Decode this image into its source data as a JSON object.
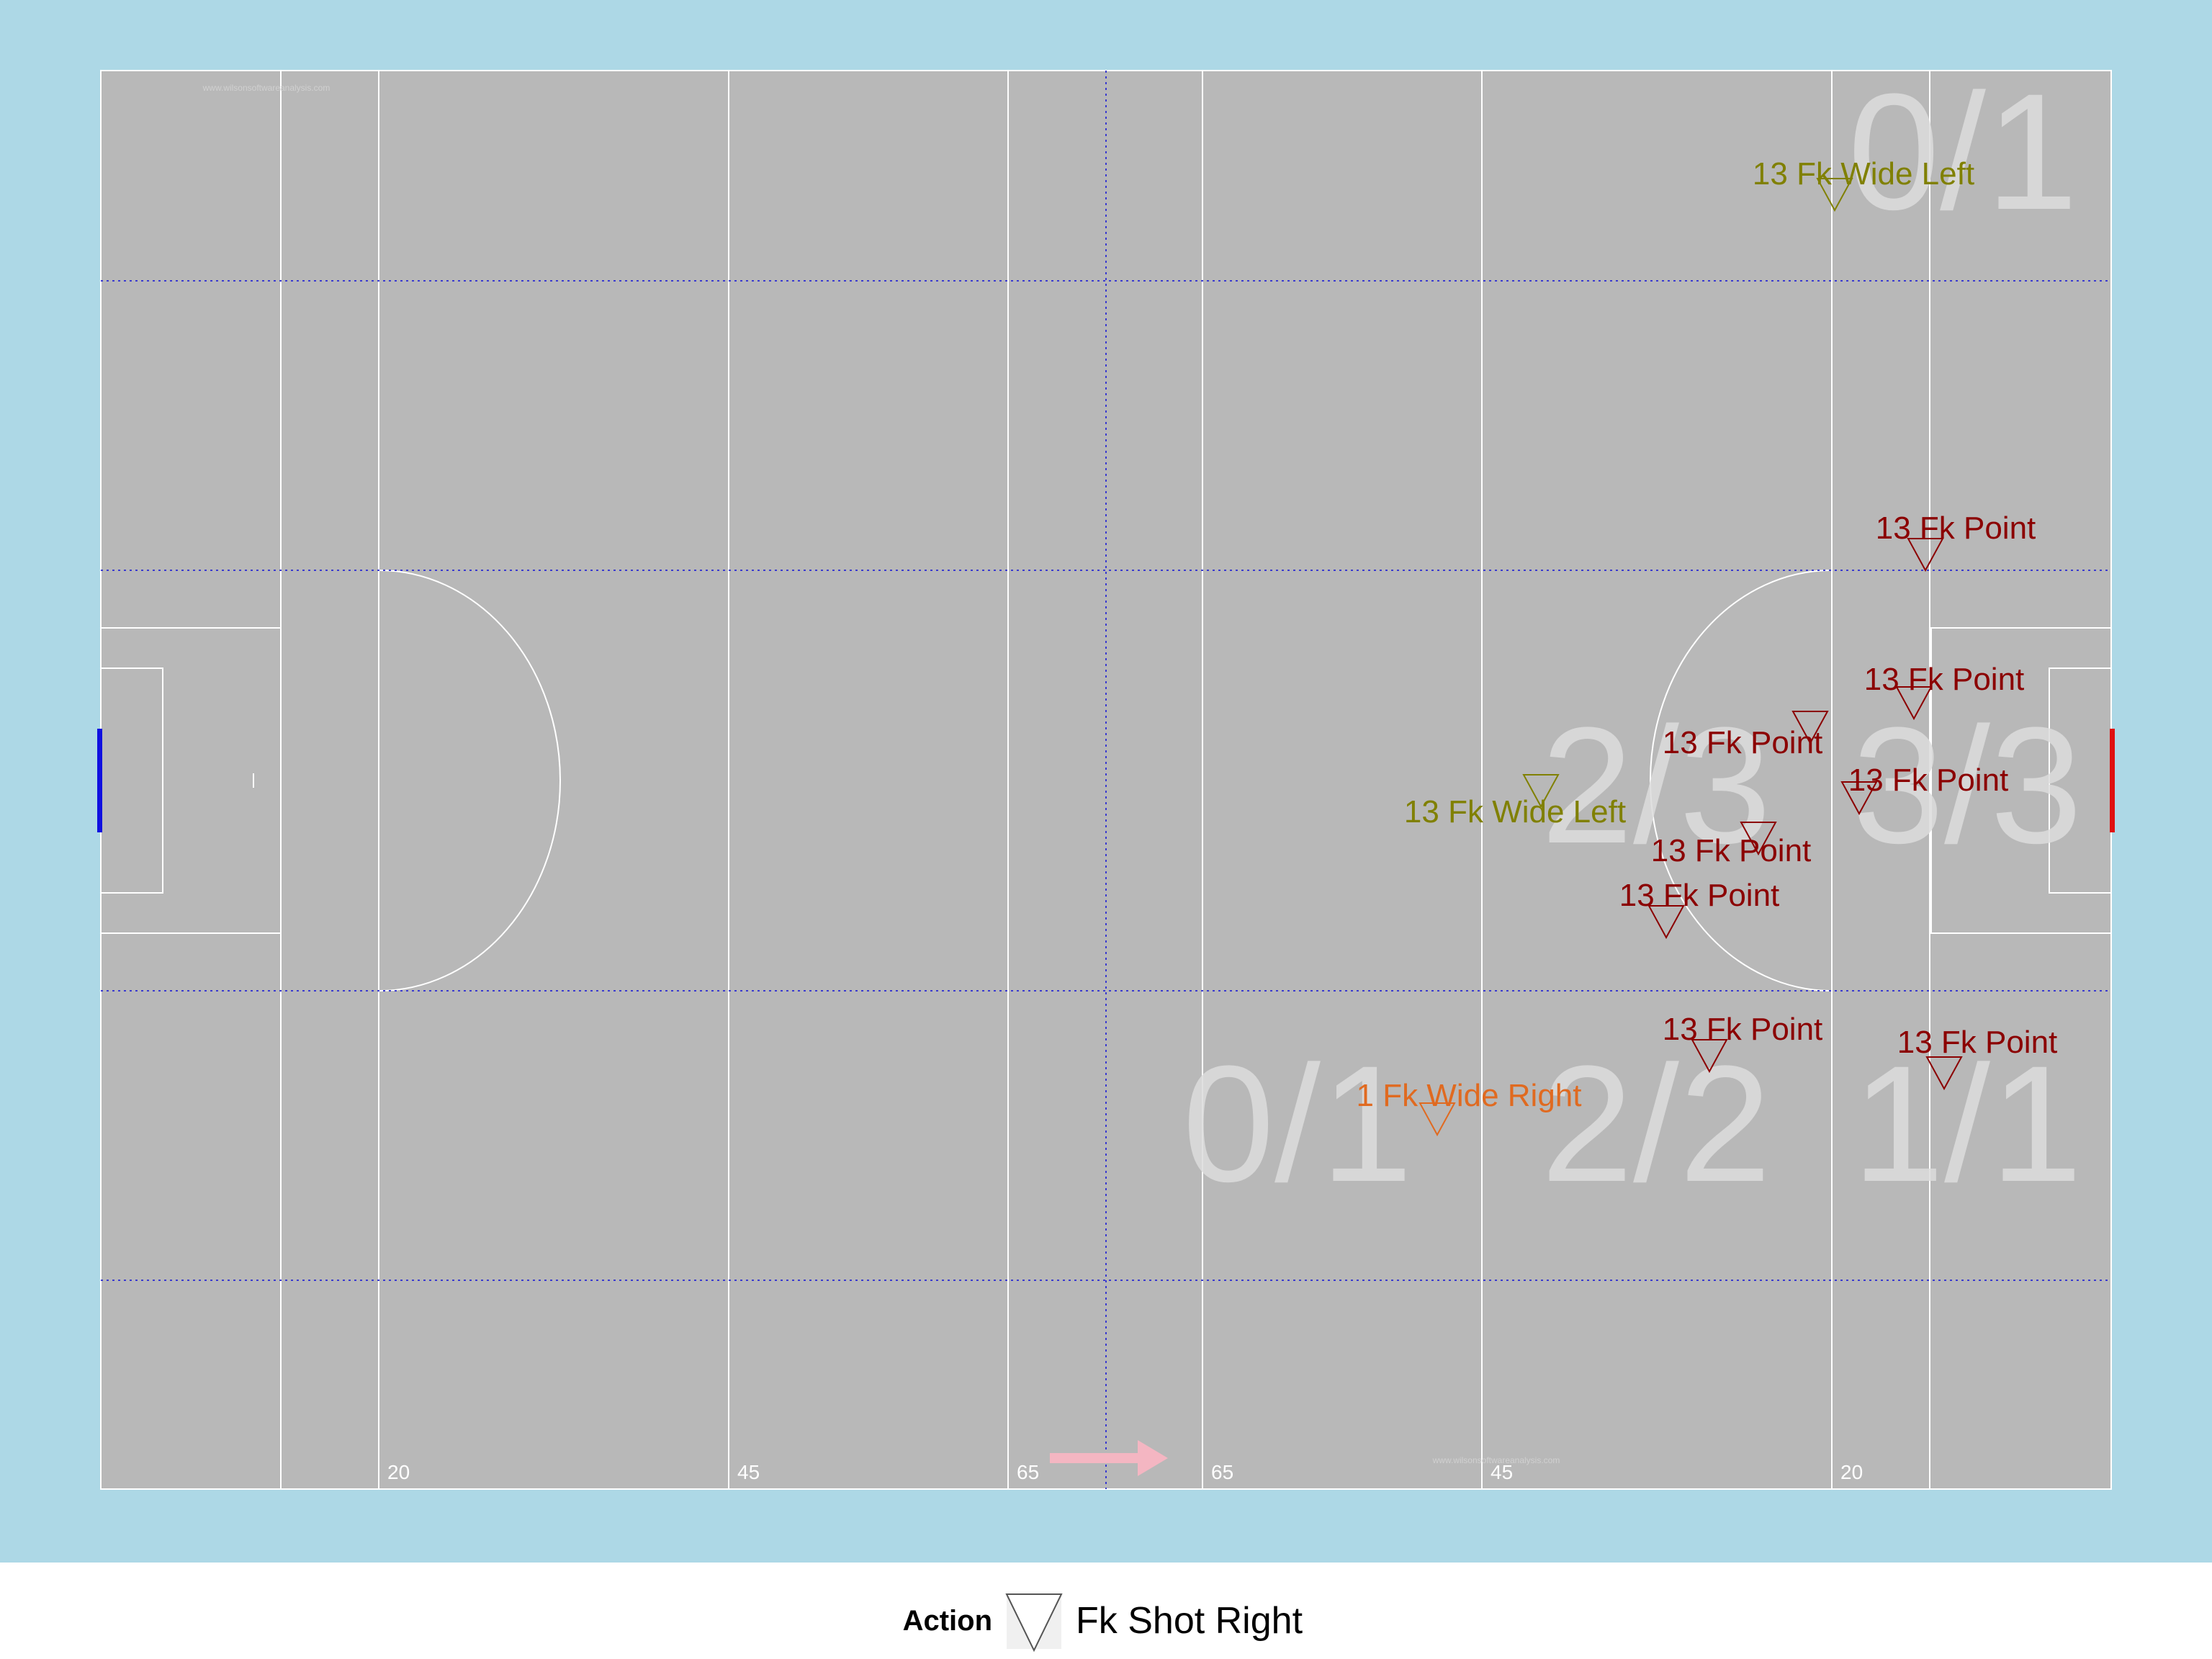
{
  "colors": {
    "background": "#add8e6",
    "pitch": "#b8b8b8",
    "lines": "#ffffff",
    "zone_grid": "#3a3acf",
    "zone_score": "#dcdcdc",
    "point": "#8b0000",
    "wide_left": "#808000",
    "wide_right": "#e06a20",
    "left_goal": "#1010e0",
    "right_goal": "#e01010",
    "direction_arrow": "#f4b6c2",
    "watermark": "#d0d0d0"
  },
  "watermark": "www.wilsonsoftwareanalysis.com",
  "distance_labels": [
    {
      "id": "20-left",
      "text": "20"
    },
    {
      "id": "45-left",
      "text": "45"
    },
    {
      "id": "65-left",
      "text": "65"
    },
    {
      "id": "65-right",
      "text": "65"
    },
    {
      "id": "45-right",
      "text": "45"
    },
    {
      "id": "20-right",
      "text": "20"
    }
  ],
  "zone_scores": [
    {
      "zone": "top-right",
      "text": "0/1"
    },
    {
      "zone": "center-mid-right",
      "text": "2/3"
    },
    {
      "zone": "center-right",
      "text": "3/3"
    },
    {
      "zone": "lower-center",
      "text": "0/1"
    },
    {
      "zone": "lower-mid-right",
      "text": "2/2"
    },
    {
      "zone": "lower-right",
      "text": "1/1"
    }
  ],
  "shot_events": [
    {
      "label": "13 Fk Wide Left",
      "outcome": "wide_left"
    },
    {
      "label": "13 Fk Point",
      "outcome": "point"
    },
    {
      "label": "13 Fk Point",
      "outcome": "point"
    },
    {
      "label": "13 Fk Point",
      "outcome": "point"
    },
    {
      "label": "13 Fk Point",
      "outcome": "point"
    },
    {
      "label": "13 Fk Wide Left",
      "outcome": "wide_left"
    },
    {
      "label": "13 Fk Point",
      "outcome": "point"
    },
    {
      "label": "13 Fk Point",
      "outcome": "point"
    },
    {
      "label": "13 Fk Point",
      "outcome": "point"
    },
    {
      "label": "13 Fk Point",
      "outcome": "point"
    },
    {
      "label": "1 Fk Wide Right",
      "outcome": "wide_right"
    }
  ],
  "legend": {
    "title": "Action",
    "item_label": "Fk Shot Right",
    "item_icon": "down-triangle-icon"
  }
}
